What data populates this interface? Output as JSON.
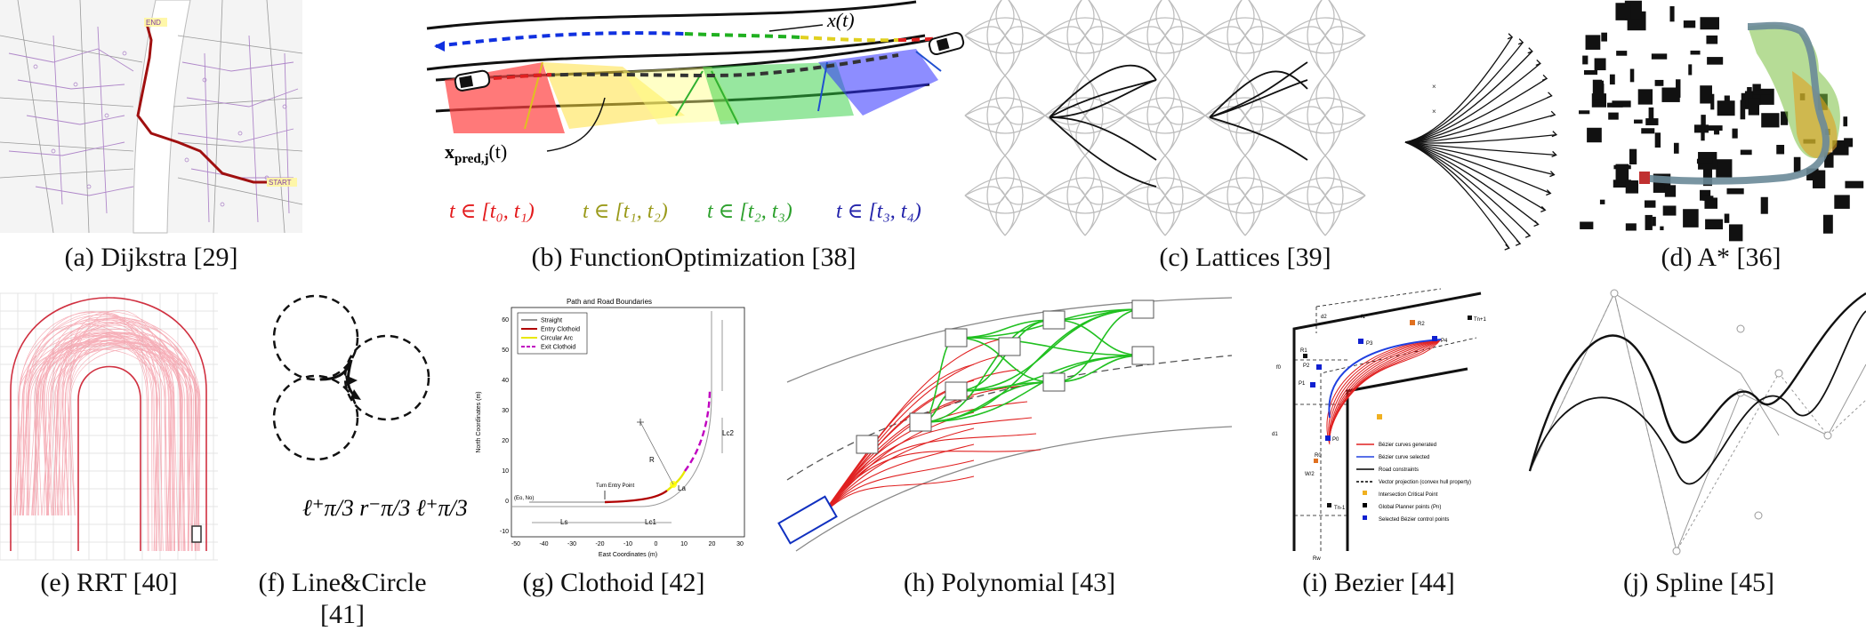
{
  "captions": {
    "a": "(a) Dijkstra [29]",
    "b": "(b) FunctionOptimization [38]",
    "c": "(c) Lattices [39]",
    "d": "(d) A* [36]",
    "e": "(e) RRT [40]",
    "f_line1": "(f) Line&Circle",
    "f_line2": "[41]",
    "g": "(g) Clothoid [42]",
    "h": "(h) Polynomial [43]",
    "i": "(i) Bezier [44]",
    "j": "(j) Spline [45]"
  },
  "panel_a": {
    "end_label": "END",
    "start_label": "START"
  },
  "panel_b": {
    "x_label": "x(t)",
    "xpred_label": "x",
    "xpred_sub": "pred,j",
    "xpred_arg": "(t)",
    "intervals": [
      {
        "text": "t ∈ [t₀, t₁)",
        "color": "#e31a1c"
      },
      {
        "text": "t ∈ [t₁, t₂)",
        "color": "#9a9a1a"
      },
      {
        "text": "t ∈ [t₂, t₃)",
        "color": "#2ca02c"
      },
      {
        "text": "t ∈ [t₃, t₄)",
        "color": "#2222aa"
      }
    ]
  },
  "panel_f": {
    "formula": "ℓ⁺π/3  r⁻π/3  ℓ⁺π/3"
  },
  "panel_g": {
    "title": "Path and Road Boundaries",
    "xlabel": "East Coordinates (m)",
    "ylabel": "North Coordinates (m)",
    "legend": [
      {
        "label": "Straight",
        "color": "#999999",
        "dash": false
      },
      {
        "label": "Entry Clothoid",
        "color": "#b00000",
        "dash": false
      },
      {
        "label": "Circular Arc",
        "color": "#e8e800",
        "dash": false
      },
      {
        "label": "Exit Clothoid",
        "color": "#c000c0",
        "dash": true
      }
    ],
    "xticks": [
      "-50",
      "-40",
      "-30",
      "-20",
      "-10",
      "0",
      "10",
      "20",
      "30"
    ],
    "yticks": [
      "60",
      "50",
      "40",
      "30",
      "20",
      "10",
      "0",
      "-10"
    ],
    "annotations": {
      "turn_entry": "Turn Entry Point",
      "origin": "(Eo, No)",
      "ls": "Ls",
      "lc1": "Lc1",
      "la": "La",
      "lc2": "Lc2",
      "r": "R"
    }
  },
  "panel_i": {
    "legend": [
      {
        "label": "Bézier curves generated",
        "color": "#e02020",
        "kind": "line"
      },
      {
        "label": "Bézier curve selected",
        "color": "#2040e0",
        "kind": "line"
      },
      {
        "label": "Road constraints",
        "color": "#000000",
        "kind": "line"
      },
      {
        "label": "Vector projection (convex hull property)",
        "color": "#000000",
        "kind": "dash"
      },
      {
        "label": "Intersection Critical Point",
        "color": "#f0b020",
        "kind": "square"
      },
      {
        "label": "Global Planner points (Pn)",
        "color": "#000000",
        "kind": "square"
      },
      {
        "label": "Selected Bézier control points",
        "color": "#1020d0",
        "kind": "square"
      }
    ],
    "points": {
      "p0": "P0",
      "p1": "P1",
      "p2": "P2",
      "p3": "P3",
      "p4": "P4",
      "r0": "R0",
      "r1": "R1",
      "r2": "R2",
      "tn1": "Tn+1",
      "tnm1": "Tn-1",
      "d1": "d1",
      "d2": "d2",
      "f1": "f1",
      "f0": "f0",
      "w2": "W/2",
      "rw": "Rw"
    }
  }
}
